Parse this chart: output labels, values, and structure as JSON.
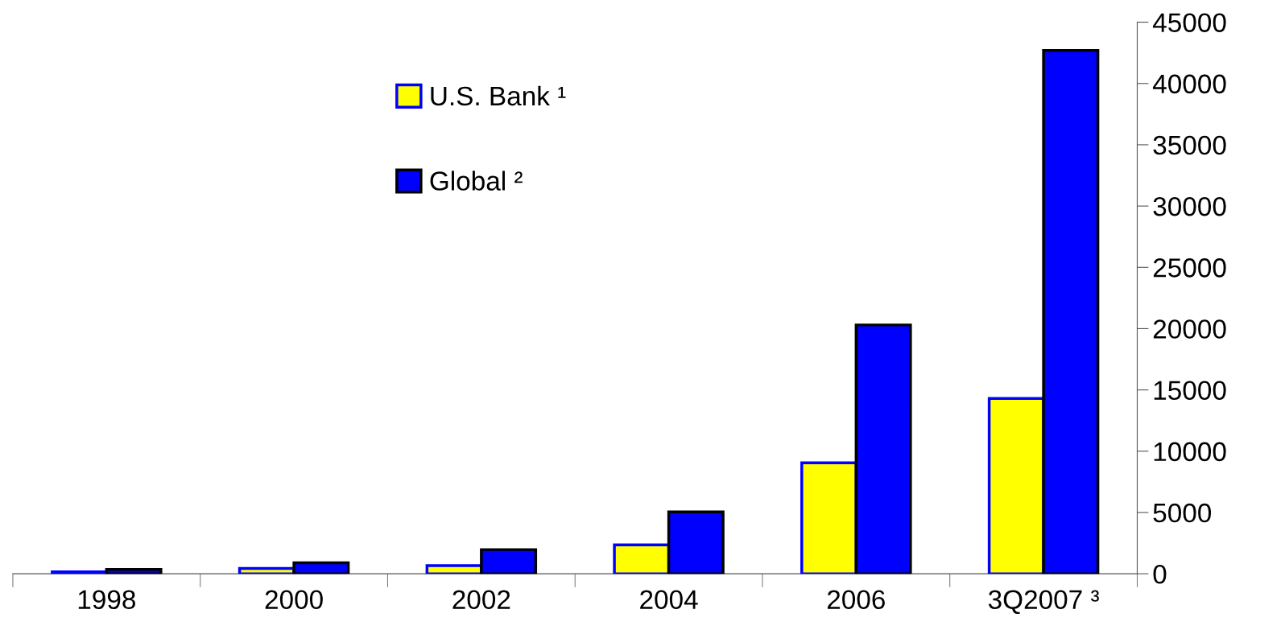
{
  "chart_data": {
    "type": "bar",
    "categories": [
      "1998",
      "2000",
      "2002",
      "2004",
      "2006",
      "3Q2007 ³"
    ],
    "series": [
      {
        "name": "U.S. Bank ¹",
        "color": "#ffff00",
        "values": [
          160,
          430,
          670,
          2360,
          9050,
          14300
        ]
      },
      {
        "name": "Global ²",
        "color": "#0000ff",
        "values": [
          350,
          900,
          1970,
          5040,
          20300,
          42700
        ]
      }
    ],
    "ylim": [
      0,
      45000
    ],
    "yticks": [
      0,
      5000,
      10000,
      15000,
      20000,
      25000,
      30000,
      35000,
      40000,
      45000
    ],
    "grid": false,
    "legend": "top left"
  }
}
